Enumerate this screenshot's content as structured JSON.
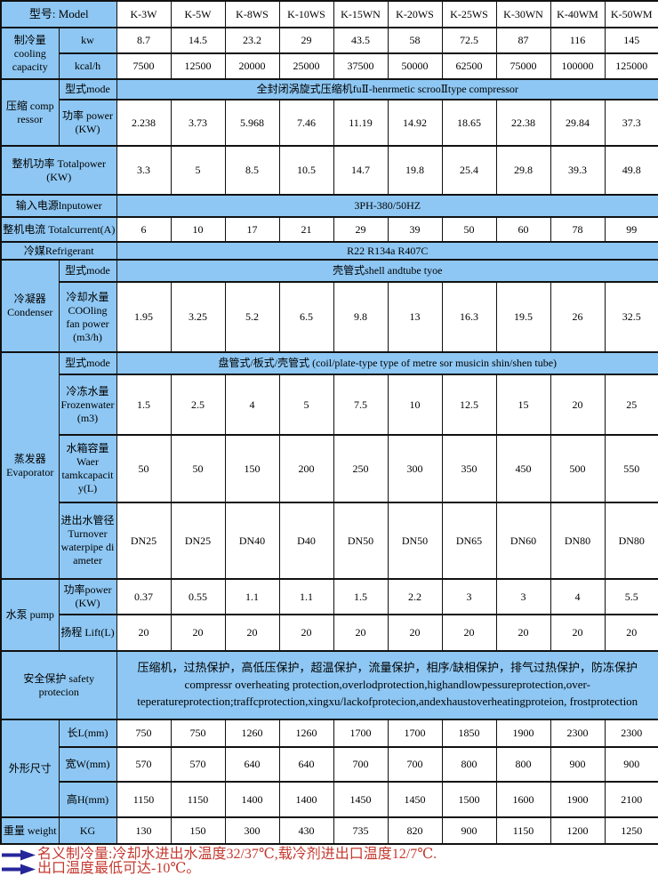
{
  "colors": {
    "cell_blue": "#8ec7f3",
    "note_red": "#c5392f",
    "arrow_navy": "#26269a",
    "border_black": "#111111"
  },
  "table": {
    "model_header": {
      "label": "型号: Model",
      "models": [
        "K-3W",
        "K-5W",
        "K-8WS",
        "K-10WS",
        "K-15WN",
        "K-20WS",
        "K-25WS",
        "K-30WN",
        "K-40WM",
        "K-50WM"
      ]
    },
    "cooling_capacity": {
      "label": "制冷量 cooling capacity",
      "kw_label": "kw",
      "kw": [
        "8.7",
        "14.5",
        "23.2",
        "29",
        "43.5",
        "58",
        "72.5",
        "87",
        "116",
        "145"
      ],
      "kcalh_label": "kcal/h",
      "kcalh": [
        "7500",
        "12500",
        "20000",
        "25000",
        "37500",
        "50000",
        "62500",
        "75000",
        "100000",
        "125000"
      ]
    },
    "compressor": {
      "label": "压缩 comp ressor",
      "mode_label": "型式mode",
      "mode_value": "全封闭涡旋式压缩机fuⅡ-henrmetic scrooⅡtype compressor",
      "power_label": "功率 power (KW)",
      "power": [
        "2.238",
        "3.73",
        "5.968",
        "7.46",
        "11.19",
        "14.92",
        "18.65",
        "22.38",
        "29.84",
        "37.3"
      ]
    },
    "total_power": {
      "label": "整机功率 Totalpower (KW)",
      "values": [
        "3.3",
        "5",
        "8.5",
        "10.5",
        "14.7",
        "19.8",
        "25.4",
        "29.8",
        "39.3",
        "49.8"
      ]
    },
    "input_power": {
      "label": "输入电源lnputower",
      "value": "3PH-380/50HZ"
    },
    "total_current": {
      "label": "整机电流 Totalcurrent(A)",
      "values": [
        "6",
        "10",
        "17",
        "21",
        "29",
        "39",
        "50",
        "60",
        "78",
        "99"
      ]
    },
    "refrigerant": {
      "label": "冷媒Refrigerant",
      "value": "R22 R134a R407C"
    },
    "condenser": {
      "label": "冷凝器 Condenser",
      "mode_label": "型式mode",
      "mode_value": "壳管式shell andtube tyoe",
      "water_label": "冷却水量 COOling fan power (m3/h)",
      "water": [
        "1.95",
        "3.25",
        "5.2",
        "6.5",
        "9.8",
        "13",
        "16.3",
        "19.5",
        "26",
        "32.5"
      ]
    },
    "evaporator": {
      "label": "蒸发器 Evaporator",
      "mode_label": "型式mode",
      "mode_value": "盘管式/板式/壳管式 (coil/plate-type type of metre sor musicin shin/shen tube)",
      "frozen_label": "冷冻水量 Frozenwater (m3)",
      "frozen": [
        "1.5",
        "2.5",
        "4",
        "5",
        "7.5",
        "10",
        "12.5",
        "15",
        "20",
        "25"
      ],
      "tank_label": "水箱容量 Waer tamkcapacity(L)",
      "tank": [
        "50",
        "50",
        "150",
        "200",
        "250",
        "300",
        "350",
        "450",
        "500",
        "550"
      ],
      "pipe_label": "进出水管径 Turnover waterpipe di ameter",
      "pipe": [
        "DN25",
        "DN25",
        "DN40",
        "D40",
        "DN50",
        "DN50",
        "DN65",
        "DN60",
        "DN80",
        "DN80"
      ]
    },
    "pump": {
      "label": "水泵 pump",
      "power_label": "功率power (KW)",
      "power": [
        "0.37",
        "0.55",
        "1.1",
        "1.1",
        "1.5",
        "2.2",
        "3",
        "3",
        "4",
        "5.5"
      ],
      "lift_label": "扬程 Lift(L)",
      "lift": [
        "20",
        "20",
        "20",
        "20",
        "20",
        "20",
        "20",
        "20",
        "20",
        "20"
      ]
    },
    "safety": {
      "label": "安全保护 safety protecion",
      "value_cn": "压缩机，过热保护，高低压保护，超温保护，流量保护，相序/缺相保护，排气过热保护，防冻保护",
      "value_en": "compressr overheating protection,overlodprotection,highandlowpessureprotection,over-teperatureprotection;traffcprotection,xingxu/lackofprotecion,andexhaustoverheatingproteion,  frostprotection"
    },
    "dimensions": {
      "label": "外形尺寸",
      "length_label": "长L(mm)",
      "length": [
        "750",
        "750",
        "1260",
        "1260",
        "1700",
        "1700",
        "1850",
        "1900",
        "2300",
        "2300"
      ],
      "width_label": "宽W(mm)",
      "width": [
        "570",
        "570",
        "640",
        "640",
        "700",
        "700",
        "800",
        "800",
        "900",
        "900"
      ],
      "height_label": "高H(mm)",
      "height": [
        "1150",
        "1150",
        "1400",
        "1400",
        "1450",
        "1450",
        "1500",
        "1600",
        "1900",
        "2100"
      ]
    },
    "weight": {
      "label": "重量 weight",
      "unit_label": "KG",
      "values": [
        "130",
        "150",
        "300",
        "430",
        "735",
        "820",
        "900",
        "1150",
        "1200",
        "1250"
      ]
    }
  },
  "footer": {
    "note1": "名义制冷量:冷却水进出水温度32/37℃,载冷剂进出口温度12/7℃.",
    "note2": "出口温度最低可达-10℃。"
  }
}
